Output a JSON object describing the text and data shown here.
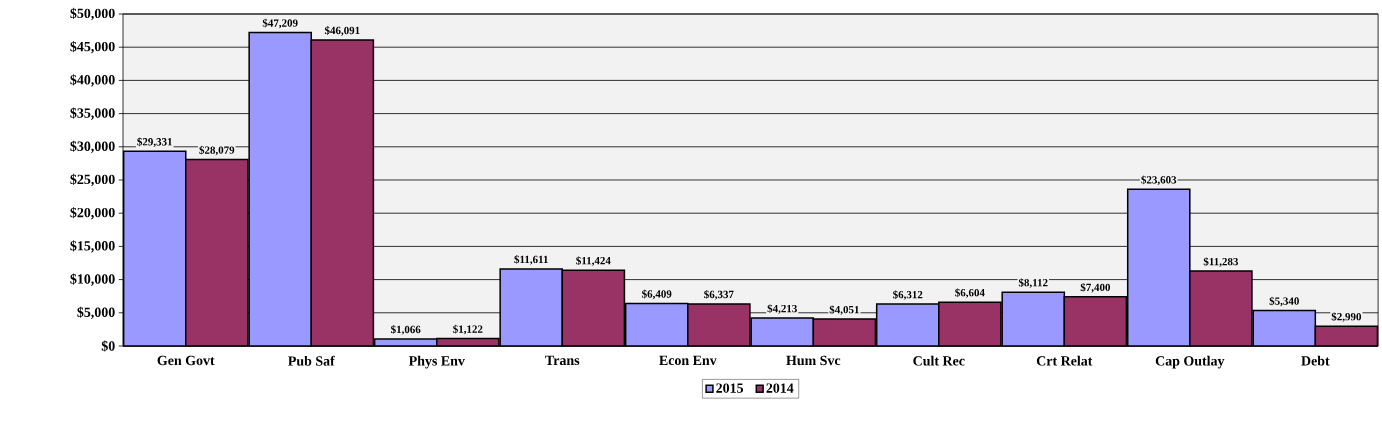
{
  "chart_data": {
    "type": "bar",
    "categories": [
      "Gen Govt",
      "Pub Saf",
      "Phys Env",
      "Trans",
      "Econ Env",
      "Hum Svc",
      "Cult Rec",
      "Crt Relat",
      "Cap Outlay",
      "Debt"
    ],
    "series": [
      {
        "name": "2015",
        "color": "#9999ff",
        "values": [
          29331,
          47209,
          1066,
          11611,
          6409,
          4213,
          6312,
          8112,
          23603,
          5340
        ],
        "value_labels": [
          "$29,331",
          "$47,209",
          "$1,066",
          "$11,611",
          "$6,409",
          "$4,213",
          "$6,312",
          "$8,112",
          "$23,603",
          "$5,340"
        ]
      },
      {
        "name": "2014",
        "color": "#993366",
        "values": [
          28079,
          46091,
          1122,
          11424,
          6337,
          4051,
          6604,
          7400,
          11283,
          2990
        ],
        "value_labels": [
          "$28,079",
          "$46,091",
          "$1,122",
          "$11,424",
          "$6,337",
          "$4,051",
          "$6,604",
          "$7,400",
          "$11,283",
          "$2,990"
        ]
      }
    ],
    "ylim": [
      0,
      50000
    ],
    "yticks": [
      {
        "value": 0,
        "label": "$0"
      },
      {
        "value": 5000,
        "label": "$5,000"
      },
      {
        "value": 10000,
        "label": "$10,000"
      },
      {
        "value": 15000,
        "label": "$15,000"
      },
      {
        "value": 20000,
        "label": "$20,000"
      },
      {
        "value": 25000,
        "label": "$25,000"
      },
      {
        "value": 30000,
        "label": "$30,000"
      },
      {
        "value": 35000,
        "label": "$35,000"
      },
      {
        "value": 40000,
        "label": "$40,000"
      },
      {
        "value": 45000,
        "label": "$45,000"
      },
      {
        "value": 50000,
        "label": "$50,000"
      }
    ],
    "grid": "y",
    "legend": "bottom"
  }
}
